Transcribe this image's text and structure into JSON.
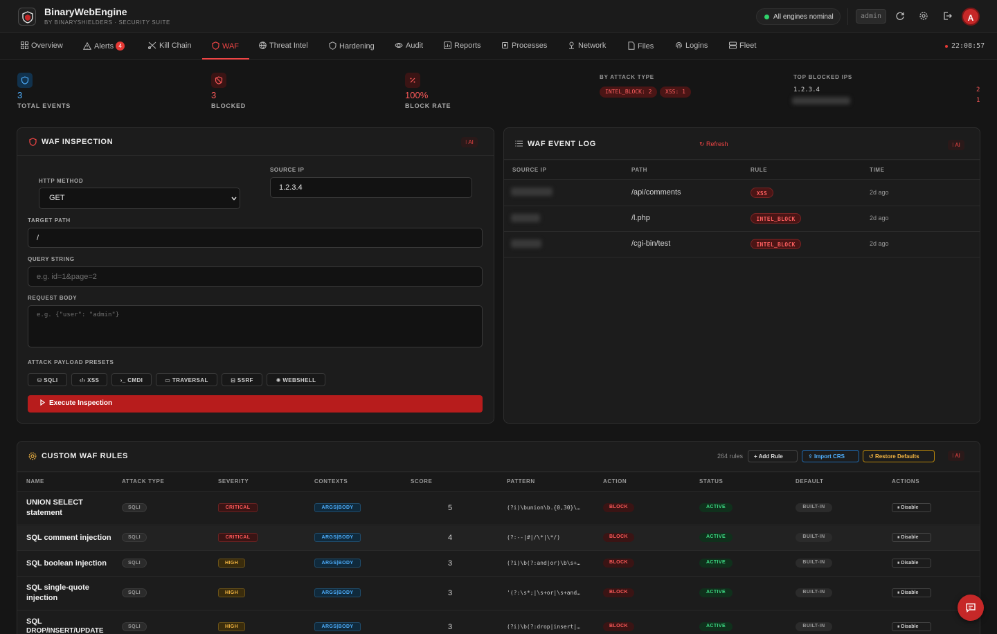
{
  "app": {
    "title": "BinaryWebEngine",
    "subtitle": "BY BINARYSHIELDERS · SECURITY SUITE"
  },
  "header": {
    "status": "All engines nominal",
    "user_chip": "admin",
    "avatar_initial": "A",
    "status_color": "#2fd36b"
  },
  "nav": {
    "items": [
      {
        "label": "Overview",
        "icon": "grid-icon"
      },
      {
        "label": "Alerts",
        "icon": "alert-icon",
        "badge": "4"
      },
      {
        "label": "Kill Chain",
        "icon": "killchain-icon"
      },
      {
        "label": "WAF",
        "icon": "shield-icon",
        "active": true
      },
      {
        "label": "Threat Intel",
        "icon": "globe-icon"
      },
      {
        "label": "Hardening",
        "icon": "hardening-icon"
      },
      {
        "label": "Audit",
        "icon": "audit-icon"
      },
      {
        "label": "Reports",
        "icon": "reports-icon"
      },
      {
        "label": "Processes",
        "icon": "cpu-icon"
      },
      {
        "label": "Network",
        "icon": "network-icon"
      },
      {
        "label": "Files",
        "icon": "file-icon"
      },
      {
        "label": "Logins",
        "icon": "fingerprint-icon"
      },
      {
        "label": "Fleet",
        "icon": "server-icon"
      }
    ],
    "clock": "22:08:57"
  },
  "stats": {
    "total": {
      "value": "3",
      "label": "TOTAL EVENTS"
    },
    "blocked": {
      "value": "3",
      "label": "BLOCKED"
    },
    "rate": {
      "value": "100%",
      "label": "BLOCK RATE"
    },
    "by_type_label": "BY ATTACK TYPE",
    "by_type": [
      "INTEL_BLOCK: 2",
      "XSS: 1"
    ],
    "top_ips_label": "TOP BLOCKED IPS",
    "top_ips": [
      {
        "ip": "1.2.3.4",
        "count": "2"
      },
      {
        "ip": "",
        "count": "1"
      }
    ]
  },
  "inspection": {
    "title": "WAF INSPECTION",
    "ai": "AI",
    "method_label": "HTTP METHOD",
    "method_value": "GET",
    "source_ip_label": "SOURCE IP",
    "source_ip_value": "1.2.3.4",
    "path_label": "TARGET PATH",
    "path_value": "/",
    "query_label": "QUERY STRING",
    "query_placeholder": "e.g. id=1&page=2",
    "body_label": "REQUEST BODY",
    "body_placeholder": "e.g. {\"user\": \"admin\"}",
    "presets_label": "ATTACK PAYLOAD PRESETS",
    "presets": [
      "SQLI",
      "XSS",
      "CMDI",
      "TRAVERSAL",
      "SSRF",
      "WEBSHELL"
    ],
    "execute": "Execute Inspection"
  },
  "event_log": {
    "title": "WAF EVENT LOG",
    "refresh": "Refresh",
    "ai": "AI",
    "columns": [
      "SOURCE IP",
      "PATH",
      "RULE",
      "TIME"
    ],
    "rows": [
      {
        "path": "/api/comments",
        "rule": "XSS",
        "time": "2d ago"
      },
      {
        "path": "/l.php",
        "rule": "INTEL_BLOCK",
        "time": "2d ago"
      },
      {
        "path": "/cgi-bin/test",
        "rule": "INTEL_BLOCK",
        "time": "2d ago"
      }
    ]
  },
  "rules": {
    "title": "CUSTOM WAF RULES",
    "count": "264 rules",
    "add": "Add Rule",
    "import": "Import CRS",
    "restore": "Restore Defaults",
    "ai": "AI",
    "columns": [
      "NAME",
      "ATTACK TYPE",
      "SEVERITY",
      "CONTEXTS",
      "SCORE",
      "PATTERN",
      "ACTION",
      "STATUS",
      "DEFAULT",
      "ACTIONS"
    ],
    "rows": [
      {
        "name1": "UNION SELECT",
        "name2": "statement",
        "type": "SQLI",
        "severity": "CRITICAL",
        "contexts": "ARGS|BODY",
        "score": "5",
        "pattern": "(?i)\\bunion\\b.{0,30}\\…",
        "action": "BLOCK",
        "status": "ACTIVE",
        "default": "BUILT-IN",
        "btn": "Disable"
      },
      {
        "name1": "SQL comment injection",
        "name2": "",
        "type": "SQLI",
        "severity": "CRITICAL",
        "contexts": "ARGS|BODY",
        "score": "4",
        "pattern": "(?:--|#|/\\*|\\*/)",
        "action": "BLOCK",
        "status": "ACTIVE",
        "default": "BUILT-IN",
        "btn": "Disable"
      },
      {
        "name1": "SQL boolean injection",
        "name2": "",
        "type": "SQLI",
        "severity": "HIGH",
        "contexts": "ARGS|BODY",
        "score": "3",
        "pattern": "(?i)\\b(?:and|or)\\b\\s+…",
        "action": "BLOCK",
        "status": "ACTIVE",
        "default": "BUILT-IN",
        "btn": "Disable"
      },
      {
        "name1": "SQL single-quote",
        "name2": "injection",
        "type": "SQLI",
        "severity": "HIGH",
        "contexts": "ARGS|BODY",
        "score": "3",
        "pattern": "'(?:\\s*;|\\s+or|\\s+and…",
        "action": "BLOCK",
        "status": "ACTIVE",
        "default": "BUILT-IN",
        "btn": "Disable"
      },
      {
        "name1": "SQL",
        "name2": "DROP/INSERT/UPDATE",
        "type": "SQLI",
        "severity": "HIGH",
        "contexts": "ARGS|BODY",
        "score": "3",
        "pattern": "(?i)\\b(?:drop|insert|…",
        "action": "BLOCK",
        "status": "ACTIVE",
        "default": "BUILT-IN",
        "btn": "Disable"
      }
    ]
  }
}
